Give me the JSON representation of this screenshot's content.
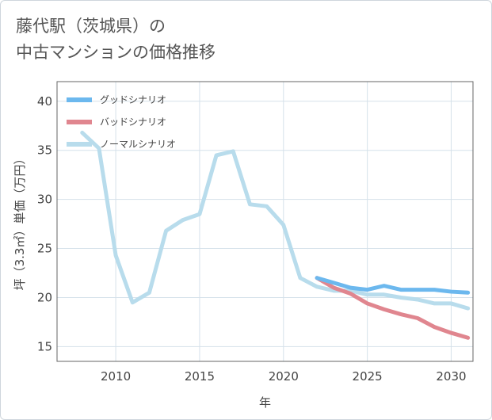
{
  "title_lines": [
    "藤代駅（茨城県）の",
    "中古マンションの価格推移"
  ],
  "chart_data": {
    "type": "line",
    "title": "藤代駅（茨城県）の中古マンションの価格推移",
    "xlabel": "年",
    "ylabel": "坪（3.3㎡）単価（万円）",
    "xlim": [
      2006.5,
      2031.3
    ],
    "ylim": [
      13.5,
      42
    ],
    "xticks": [
      2010,
      2015,
      2020,
      2025,
      2030
    ],
    "yticks": [
      15,
      20,
      25,
      30,
      35,
      40
    ],
    "grid": true,
    "legend_position": "top-left",
    "series": [
      {
        "name": "グッドシナリオ",
        "color": "#6cb8ee",
        "x": [
          2022,
          2023,
          2024,
          2025,
          2026,
          2027,
          2028,
          2029,
          2030,
          2031
        ],
        "values": [
          22.0,
          21.5,
          21.0,
          20.8,
          21.2,
          20.8,
          20.8,
          20.8,
          20.6,
          20.5
        ]
      },
      {
        "name": "バッドシナリオ",
        "color": "#e0868f",
        "x": [
          2022,
          2023,
          2024,
          2025,
          2026,
          2027,
          2028,
          2029,
          2030,
          2031
        ],
        "values": [
          22.0,
          21.0,
          20.4,
          19.4,
          18.8,
          18.3,
          17.9,
          17.0,
          16.4,
          15.9
        ]
      },
      {
        "name": "ノーマルシナリオ",
        "color": "#b8dcec",
        "x": [
          2008,
          2009,
          2010,
          2011,
          2012,
          2013,
          2014,
          2015,
          2016,
          2017,
          2018,
          2019,
          2020,
          2021,
          2022,
          2023,
          2024,
          2025,
          2026,
          2027,
          2028,
          2029,
          2030,
          2031
        ],
        "values": [
          36.8,
          35.2,
          24.3,
          19.5,
          20.5,
          26.8,
          27.9,
          28.5,
          34.5,
          34.9,
          29.5,
          29.3,
          27.4,
          22.0,
          21.1,
          20.7,
          20.7,
          20.3,
          20.3,
          20.0,
          19.8,
          19.4,
          19.4,
          18.9
        ]
      }
    ]
  }
}
